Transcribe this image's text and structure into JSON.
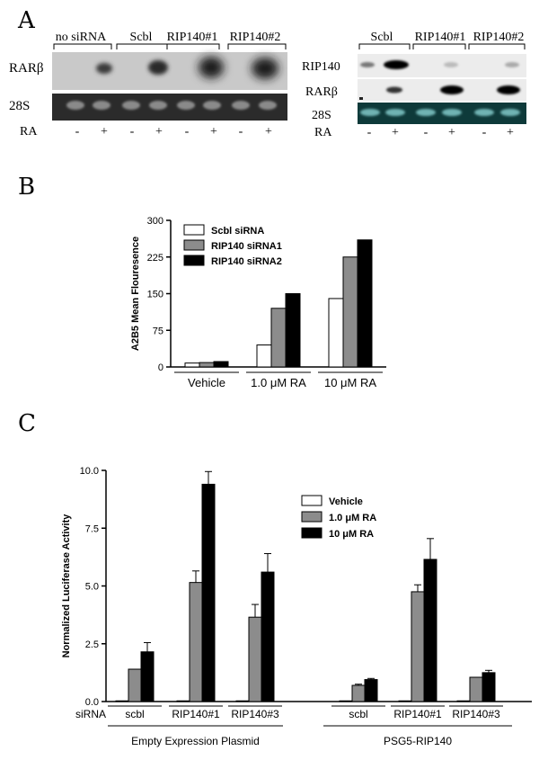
{
  "panel_a": {
    "letter": "A",
    "left_blot": {
      "groups": [
        "no siRNA",
        "Scbl",
        "RIP140#1",
        "RIP140#2"
      ],
      "row_labels": [
        "RARβ",
        "28S"
      ],
      "ra_label": "RA",
      "ra_signs": [
        "-",
        "+",
        "-",
        "+",
        "-",
        "+",
        "-",
        "+"
      ]
    },
    "right_blot": {
      "groups": [
        "Scbl",
        "RIP140#1",
        "RIP140#2"
      ],
      "row_labels": [
        "RIP140",
        "RARβ",
        "28S"
      ],
      "ra_label": "RA",
      "ra_signs": [
        "-",
        "+",
        "-",
        "+",
        "-",
        "+"
      ]
    }
  },
  "panel_b": {
    "letter": "B"
  },
  "panel_c": {
    "letter": "C"
  },
  "chart_data": [
    {
      "type": "bar",
      "panel": "B",
      "ylabel": "A2B5 Mean Flouresence",
      "ylim": [
        0,
        300
      ],
      "yticks": [
        "0",
        "75",
        "150",
        "225",
        "300"
      ],
      "categories": [
        "Vehicle",
        "1.0 μM RA",
        "10 μM RA"
      ],
      "series": [
        {
          "name": "Scbl siRNA",
          "color": "#ffffff",
          "values": [
            8,
            45,
            140
          ]
        },
        {
          "name": "RIP140 siRNA1",
          "color": "#8c8c8c",
          "values": [
            9,
            120,
            225
          ]
        },
        {
          "name": "RIP140 siRNA2",
          "color": "#000000",
          "values": [
            11,
            150,
            260
          ]
        }
      ],
      "legend": "top-left"
    },
    {
      "type": "bar",
      "panel": "C",
      "ylabel": "Normalized Luciferase Activity",
      "ylim": [
        0,
        10
      ],
      "yticks": [
        "0.0",
        "2.5",
        "5.0",
        "7.5",
        "10.0"
      ],
      "xlabel_prefix": "siRNA",
      "categories": [
        "scbl",
        "RIP140#1",
        "RIP140#3",
        "scbl",
        "RIP140#1",
        "RIP140#3"
      ],
      "groups": [
        "Empty Expression Plasmid",
        "PSG5-RIP140"
      ],
      "series": [
        {
          "name": "Vehicle",
          "color": "#ffffff",
          "values": [
            0.03,
            0.03,
            0.03,
            0.03,
            0.03,
            0.03
          ],
          "errors": [
            0,
            0,
            0,
            0,
            0,
            0
          ]
        },
        {
          "name": "1.0 μM RA",
          "color": "#8c8c8c",
          "values": [
            1.4,
            5.15,
            3.65,
            0.7,
            4.75,
            1.05
          ],
          "errors": [
            0,
            0.5,
            0.55,
            0.05,
            0.3,
            0
          ]
        },
        {
          "name": "10 μM RA",
          "color": "#000000",
          "values": [
            2.15,
            9.4,
            5.6,
            0.95,
            6.15,
            1.25
          ],
          "errors": [
            0.4,
            0.55,
            0.8,
            0.05,
            0.9,
            0.1
          ]
        }
      ],
      "legend": "top-right"
    }
  ]
}
